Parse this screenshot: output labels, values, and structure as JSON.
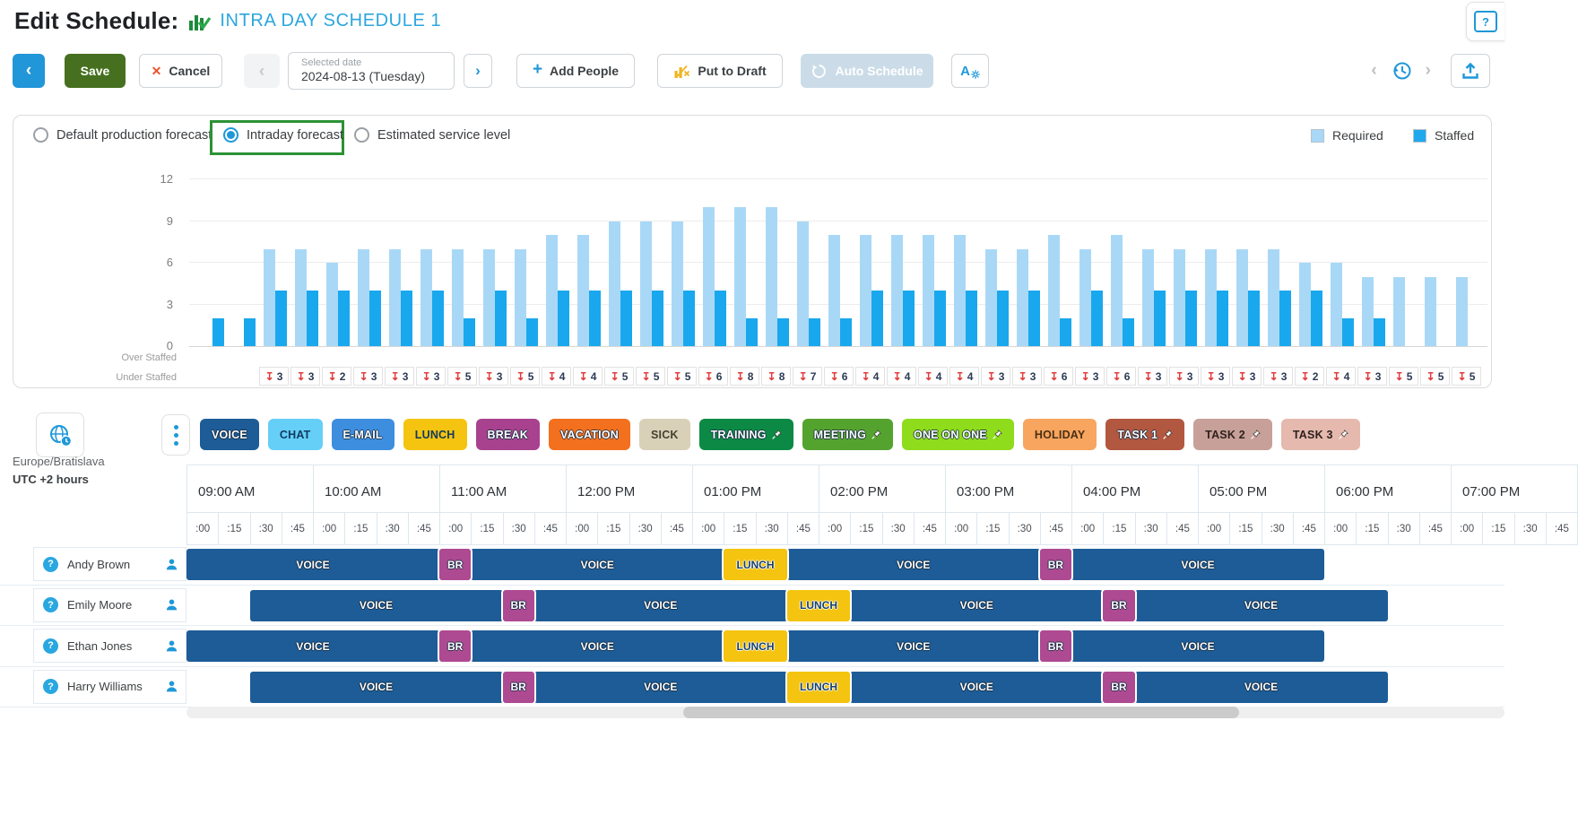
{
  "page": {
    "title": "Edit Schedule:",
    "schedule_name": "INTRA DAY SCHEDULE 1"
  },
  "toolbar": {
    "back_label": "‹",
    "save_label": "Save",
    "cancel_label": "Cancel",
    "cancel_x": "✕",
    "prev_label": "‹",
    "next_label": "›",
    "date_label": "Selected date",
    "date_value": "2024-08-13 (Tuesday)",
    "add_people_label": "Add People",
    "add_people_plus": "+",
    "put_to_draft_label": "Put to Draft",
    "auto_schedule_label": "Auto Schedule",
    "agent_settings_label": "A"
  },
  "forecast": {
    "options": [
      "Default production forecast",
      "Intraday forecast",
      "Estimated service level"
    ],
    "selected": "Intraday forecast",
    "selected_index": 1,
    "legend": [
      {
        "label": "Required",
        "color": "#A9D8F7"
      },
      {
        "label": "Staffed",
        "color": "#1FA8EC"
      }
    ]
  },
  "chart_data": {
    "type": "bar",
    "title": "",
    "x_interval_minutes": 15,
    "x": [
      "09:00",
      "09:15",
      "09:30",
      "09:45",
      "10:00",
      "10:15",
      "10:30",
      "10:45",
      "11:00",
      "11:15",
      "11:30",
      "11:45",
      "12:00",
      "12:15",
      "12:30",
      "12:45",
      "13:00",
      "13:15",
      "13:30",
      "13:45",
      "14:00",
      "14:15",
      "14:30",
      "14:45",
      "15:00",
      "15:15",
      "15:30",
      "15:45",
      "16:00",
      "16:15",
      "16:30",
      "16:45",
      "17:00",
      "17:15",
      "17:30",
      "17:45",
      "18:00",
      "18:15",
      "18:30",
      "18:45",
      "19:00"
    ],
    "series": [
      {
        "name": "Required",
        "color": "#A9D8F7",
        "values": [
          0,
          0,
          7,
          7,
          6,
          7,
          7,
          7,
          7,
          7,
          7,
          8,
          8,
          9,
          9,
          9,
          10,
          10,
          10,
          9,
          8,
          8,
          8,
          8,
          8,
          7,
          7,
          8,
          7,
          8,
          7,
          7,
          7,
          7,
          7,
          6,
          6,
          5,
          5,
          5,
          5
        ]
      },
      {
        "name": "Staffed",
        "color": "#19A8ED",
        "values": [
          2,
          2,
          4,
          4,
          4,
          4,
          4,
          4,
          2,
          4,
          2,
          4,
          4,
          4,
          4,
          4,
          4,
          2,
          2,
          2,
          2,
          4,
          4,
          4,
          4,
          4,
          4,
          2,
          4,
          2,
          4,
          4,
          4,
          4,
          4,
          4,
          2,
          2,
          0,
          0,
          0
        ]
      }
    ],
    "under_staffed": [
      null,
      null,
      3,
      3,
      2,
      3,
      3,
      3,
      5,
      3,
      5,
      4,
      4,
      5,
      5,
      5,
      6,
      8,
      8,
      7,
      6,
      4,
      4,
      4,
      4,
      3,
      3,
      6,
      3,
      6,
      3,
      3,
      3,
      3,
      3,
      2,
      4,
      3,
      5,
      5,
      5
    ],
    "over_staffed_label": "Over Staffed",
    "under_staffed_label": "Under Staffed",
    "ylim": [
      0,
      12
    ],
    "yticks": [
      0,
      3,
      6,
      9,
      12
    ],
    "grid": true,
    "legend_position": "top-right"
  },
  "activities": [
    {
      "label": "VOICE",
      "bg": "#1D5C96",
      "fg": "#ffffff",
      "pinned": false
    },
    {
      "label": "CHAT",
      "bg": "#66CFF7",
      "fg": "#0E3B63",
      "pinned": false
    },
    {
      "label": "E-MAIL",
      "bg": "#3E8EDF",
      "fg": "#ffffff",
      "pinned": false
    },
    {
      "label": "LUNCH",
      "bg": "#F4C410",
      "fg": "#123A5F",
      "pinned": false
    },
    {
      "label": "BREAK",
      "bg": "#A8418E",
      "fg": "#ffffff",
      "pinned": false
    },
    {
      "label": "VACATION",
      "bg": "#F3701E",
      "fg": "#ffffff",
      "pinned": false
    },
    {
      "label": "SICK",
      "bg": "#D9D0B8",
      "fg": "#44412F",
      "pinned": false
    },
    {
      "label": "TRAINING",
      "bg": "#0C8A45",
      "fg": "#ffffff",
      "pinned": true
    },
    {
      "label": "MEETING",
      "bg": "#55A32F",
      "fg": "#ffffff",
      "pinned": true
    },
    {
      "label": "ONE ON ONE",
      "bg": "#8EDC1C",
      "fg": "#ffffff",
      "pinned": true
    },
    {
      "label": "HOLIDAY",
      "bg": "#F8A55F",
      "fg": "#4A3013",
      "pinned": false
    },
    {
      "label": "TASK 1",
      "bg": "#B25740",
      "fg": "#ffffff",
      "pinned": true
    },
    {
      "label": "TASK 2",
      "bg": "#C7A099",
      "fg": "#2F211D",
      "pinned": true
    },
    {
      "label": "TASK 3",
      "bg": "#E5B9AE",
      "fg": "#2F211D",
      "pinned": true
    }
  ],
  "timezone": {
    "region": "Europe/Bratislava",
    "offset": "UTC +2 hours"
  },
  "timeline": {
    "hours": [
      "09:00 AM",
      "10:00 AM",
      "11:00 AM",
      "12:00 PM",
      "01:00 PM",
      "02:00 PM",
      "03:00 PM",
      "04:00 PM",
      "05:00 PM",
      "06:00 PM",
      "07:00 PM"
    ],
    "ticks": [
      ":00",
      ":15",
      ":30",
      ":45"
    ]
  },
  "schedule": {
    "agents": [
      {
        "name": "Andy Brown",
        "blocks": [
          {
            "label": "VOICE",
            "type": "voice",
            "start": "09:00",
            "end": "11:00",
            "start_min": 0,
            "end_min": 120
          },
          {
            "label": "BR",
            "type": "break",
            "start": "11:00",
            "end": "11:15",
            "start_min": 120,
            "end_min": 135
          },
          {
            "label": "VOICE",
            "type": "voice",
            "start": "11:15",
            "end": "13:15",
            "start_min": 135,
            "end_min": 255
          },
          {
            "label": "LUNCH",
            "type": "lunch",
            "start": "13:15",
            "end": "13:45",
            "start_min": 255,
            "end_min": 285
          },
          {
            "label": "VOICE",
            "type": "voice",
            "start": "13:45",
            "end": "15:45",
            "start_min": 285,
            "end_min": 405
          },
          {
            "label": "BR",
            "type": "break",
            "start": "15:45",
            "end": "16:00",
            "start_min": 405,
            "end_min": 420
          },
          {
            "label": "VOICE",
            "type": "voice",
            "start": "16:00",
            "end": "18:00",
            "start_min": 420,
            "end_min": 540
          }
        ]
      },
      {
        "name": "Emily Moore",
        "blocks": [
          {
            "label": "VOICE",
            "type": "voice",
            "start": "09:30",
            "end": "11:30",
            "start_min": 30,
            "end_min": 150
          },
          {
            "label": "BR",
            "type": "break",
            "start": "11:30",
            "end": "11:45",
            "start_min": 150,
            "end_min": 165
          },
          {
            "label": "VOICE",
            "type": "voice",
            "start": "11:45",
            "end": "13:45",
            "start_min": 165,
            "end_min": 285
          },
          {
            "label": "LUNCH",
            "type": "lunch",
            "start": "13:45",
            "end": "14:15",
            "start_min": 285,
            "end_min": 315
          },
          {
            "label": "VOICE",
            "type": "voice",
            "start": "14:15",
            "end": "16:15",
            "start_min": 315,
            "end_min": 435
          },
          {
            "label": "BR",
            "type": "break",
            "start": "16:15",
            "end": "16:30",
            "start_min": 435,
            "end_min": 450
          },
          {
            "label": "VOICE",
            "type": "voice",
            "start": "16:30",
            "end": "18:30",
            "start_min": 450,
            "end_min": 570
          }
        ]
      },
      {
        "name": "Ethan Jones",
        "blocks": [
          {
            "label": "VOICE",
            "type": "voice",
            "start": "09:00",
            "end": "11:00",
            "start_min": 0,
            "end_min": 120
          },
          {
            "label": "BR",
            "type": "break",
            "start": "11:00",
            "end": "11:15",
            "start_min": 120,
            "end_min": 135
          },
          {
            "label": "VOICE",
            "type": "voice",
            "start": "11:15",
            "end": "13:15",
            "start_min": 135,
            "end_min": 255
          },
          {
            "label": "LUNCH",
            "type": "lunch",
            "start": "13:15",
            "end": "13:45",
            "start_min": 255,
            "end_min": 285
          },
          {
            "label": "VOICE",
            "type": "voice",
            "start": "13:45",
            "end": "15:45",
            "start_min": 285,
            "end_min": 405
          },
          {
            "label": "BR",
            "type": "break",
            "start": "15:45",
            "end": "16:00",
            "start_min": 405,
            "end_min": 420
          },
          {
            "label": "VOICE",
            "type": "voice",
            "start": "16:00",
            "end": "18:00",
            "start_min": 420,
            "end_min": 540
          }
        ]
      },
      {
        "name": "Harry Williams",
        "blocks": [
          {
            "label": "VOICE",
            "type": "voice",
            "start": "09:30",
            "end": "11:30",
            "start_min": 30,
            "end_min": 150
          },
          {
            "label": "BR",
            "type": "break",
            "start": "11:30",
            "end": "11:45",
            "start_min": 150,
            "end_min": 165
          },
          {
            "label": "VOICE",
            "type": "voice",
            "start": "11:45",
            "end": "13:45",
            "start_min": 165,
            "end_min": 285
          },
          {
            "label": "LUNCH",
            "type": "lunch",
            "start": "13:45",
            "end": "14:15",
            "start_min": 285,
            "end_min": 315
          },
          {
            "label": "VOICE",
            "type": "voice",
            "start": "14:15",
            "end": "16:15",
            "start_min": 315,
            "end_min": 435
          },
          {
            "label": "BR",
            "type": "break",
            "start": "16:15",
            "end": "16:30",
            "start_min": 435,
            "end_min": 450
          },
          {
            "label": "VOICE",
            "type": "voice",
            "start": "16:30",
            "end": "18:30",
            "start_min": 450,
            "end_min": 570
          }
        ]
      }
    ]
  },
  "colors": {
    "accent": "#1F98D8",
    "title_link": "#2BA6DF",
    "save": "#46701F",
    "cancel_x": "#E8552D",
    "highlight_border": "#2B9235",
    "required": "#A9D8F7",
    "staffed": "#19A8ED",
    "under_arrow": "#E23B3B",
    "voice": "#1D5C96",
    "break": "#AD4A92",
    "lunch": "#F4C410"
  }
}
